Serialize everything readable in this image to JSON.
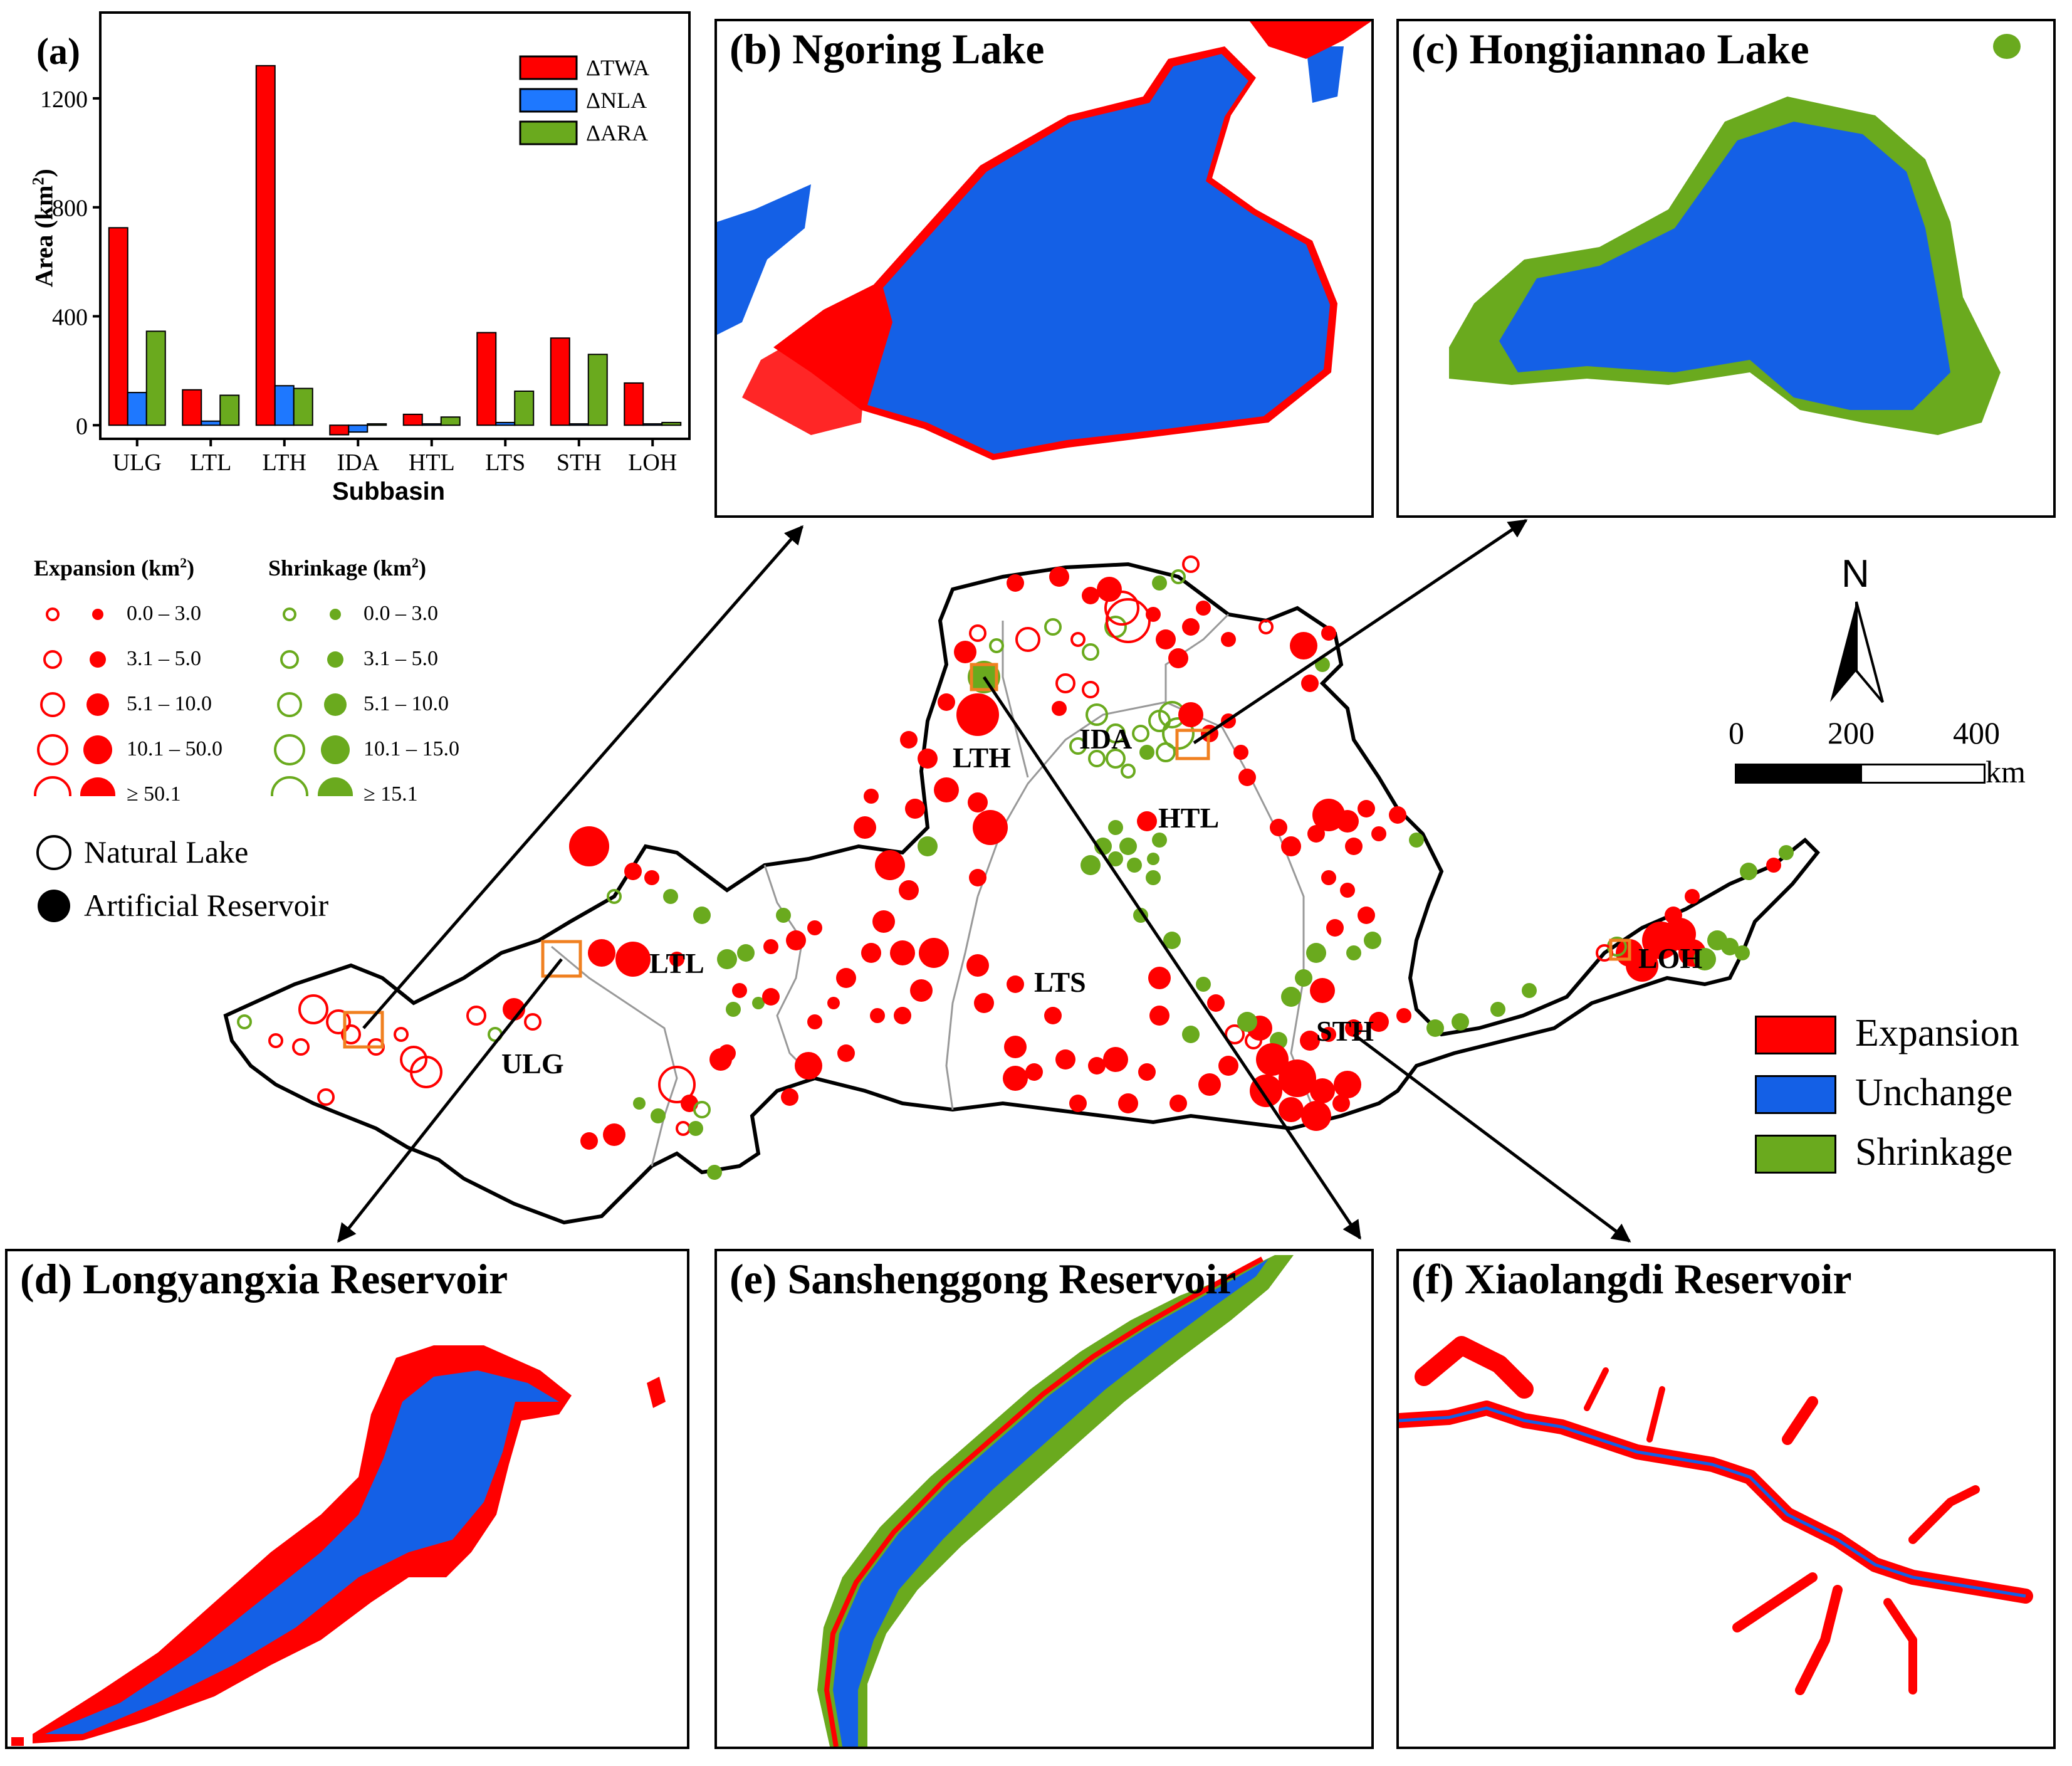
{
  "colors": {
    "expansion": "#ff0000",
    "unchange": "#1460e6",
    "shrinkage": "#6aaa1e",
    "boundary": "#000000",
    "subbasin": "#999999"
  },
  "panel_a": {
    "title": "(a)",
    "xlabel": "Subbasin",
    "ylabel": "Area (km",
    "ylabel_sup": "2",
    "ylabel_end": ")"
  },
  "chart_data": {
    "type": "bar",
    "title": "(a)",
    "xlabel": "Subbasin",
    "ylabel": "Area (km2)",
    "ylim": [
      -50,
      1400
    ],
    "yticks": [
      0,
      400,
      800,
      1200
    ],
    "categories": [
      "ULG",
      "LTL",
      "LTH",
      "IDA",
      "HTL",
      "LTS",
      "STH",
      "LOH"
    ],
    "legend_position": "top-right",
    "series": [
      {
        "name": "ΔTWA",
        "color": "#ff0000",
        "values": [
          725,
          130,
          1320,
          -35,
          40,
          340,
          320,
          155
        ]
      },
      {
        "name": "ΔNLA",
        "color": "#1e78ff",
        "values": [
          120,
          15,
          145,
          -25,
          5,
          10,
          5,
          5
        ]
      },
      {
        "name": "ΔARA",
        "color": "#6aaa1e",
        "values": [
          345,
          110,
          135,
          5,
          30,
          125,
          260,
          10
        ]
      }
    ]
  },
  "panels": {
    "b": "(b) Ngoring Lake",
    "c": "(c) Hongjiannao Lake",
    "d": "(d) Longyangxia Reservoir",
    "e": "(e) Sanshenggong Reservoir",
    "f": "(f) Xiaolangdi Reservoir"
  },
  "symbol_legend": {
    "expansion_head": "Expansion (km",
    "shrinkage_head": "Shrinkage (km",
    "sup": "2",
    "close": ")",
    "expansion_classes": [
      "0.0 – 3.0",
      "3.1 – 5.0",
      "5.1 – 10.0",
      "10.1 – 50.0",
      "≥ 50.1"
    ],
    "shrinkage_classes": [
      "0.0 – 3.0",
      "3.1 – 5.0",
      "5.1 – 10.0",
      "10.1 – 15.0",
      "≥ 15.1"
    ],
    "natural_lake": "Natural Lake",
    "artificial_reservoir": "Artificial Reservoir"
  },
  "map_labels": {
    "ULG": "ULG",
    "LTL": "LTL",
    "LTH": "LTH",
    "IDA": "IDA",
    "HTL": "HTL",
    "LTS": "LTS",
    "STH": "STH",
    "LOH": "LOH"
  },
  "north_arrow": "N",
  "scale_bar": {
    "ticks": [
      "0",
      "200",
      "400"
    ],
    "unit": "km"
  },
  "change_legend": {
    "expansion": "Expansion",
    "unchange": "Unchange",
    "shrinkage": "Shrinkage"
  }
}
